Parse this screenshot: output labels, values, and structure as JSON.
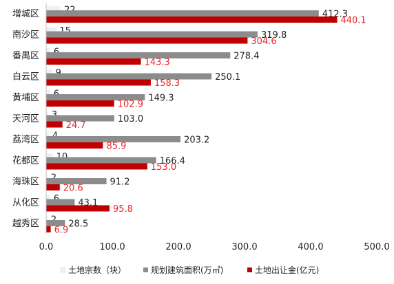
{
  "chart_data": {
    "type": "bar",
    "orientation": "horizontal",
    "categories": [
      "增城区",
      "南沙区",
      "番禺区",
      "白云区",
      "黄埔区",
      "天河区",
      "荔湾区",
      "花都区",
      "海珠区",
      "从化区",
      "越秀区"
    ],
    "series": [
      {
        "name": "土地宗数（块）",
        "color": "#f0f0f0",
        "label_color": "#222222",
        "values": [
          22,
          15,
          6,
          9,
          6,
          3,
          4,
          10,
          2,
          6,
          2
        ]
      },
      {
        "name": "规划建筑面积(万㎡)",
        "color": "#8c8c8c",
        "label_color": "#222222",
        "values": [
          412.3,
          319.8,
          278.4,
          250.1,
          149.3,
          103.0,
          203.2,
          166.4,
          91.2,
          43.1,
          28.5
        ]
      },
      {
        "name": "土地出让金(亿元)",
        "color": "#c00000",
        "label_color": "#e8262a",
        "values": [
          440.1,
          304.6,
          143.3,
          158.3,
          102.9,
          24.7,
          85.9,
          153.0,
          20.6,
          95.8,
          6.9
        ]
      }
    ],
    "value_labels": [
      [
        "22",
        "15",
        "6",
        "9",
        "6",
        "3",
        "4",
        "10",
        "2",
        "6",
        "2"
      ],
      [
        "412.3",
        "319.8",
        "278.4",
        "250.1",
        "149.3",
        "103.0",
        "203.2",
        "166.4",
        "91.2",
        "43.1",
        "28.5"
      ],
      [
        "440.1",
        "304.6",
        "143.3",
        "158.3",
        "102.9",
        "24.7",
        "85.9",
        "153.0",
        "20.6",
        "95.8",
        "6.9"
      ]
    ],
    "xlim": [
      0,
      500
    ],
    "xticks": [
      "0.0",
      "100.0",
      "200.0",
      "300.0",
      "400.0",
      "500.0"
    ],
    "grid": false,
    "legend_position": "bottom"
  }
}
